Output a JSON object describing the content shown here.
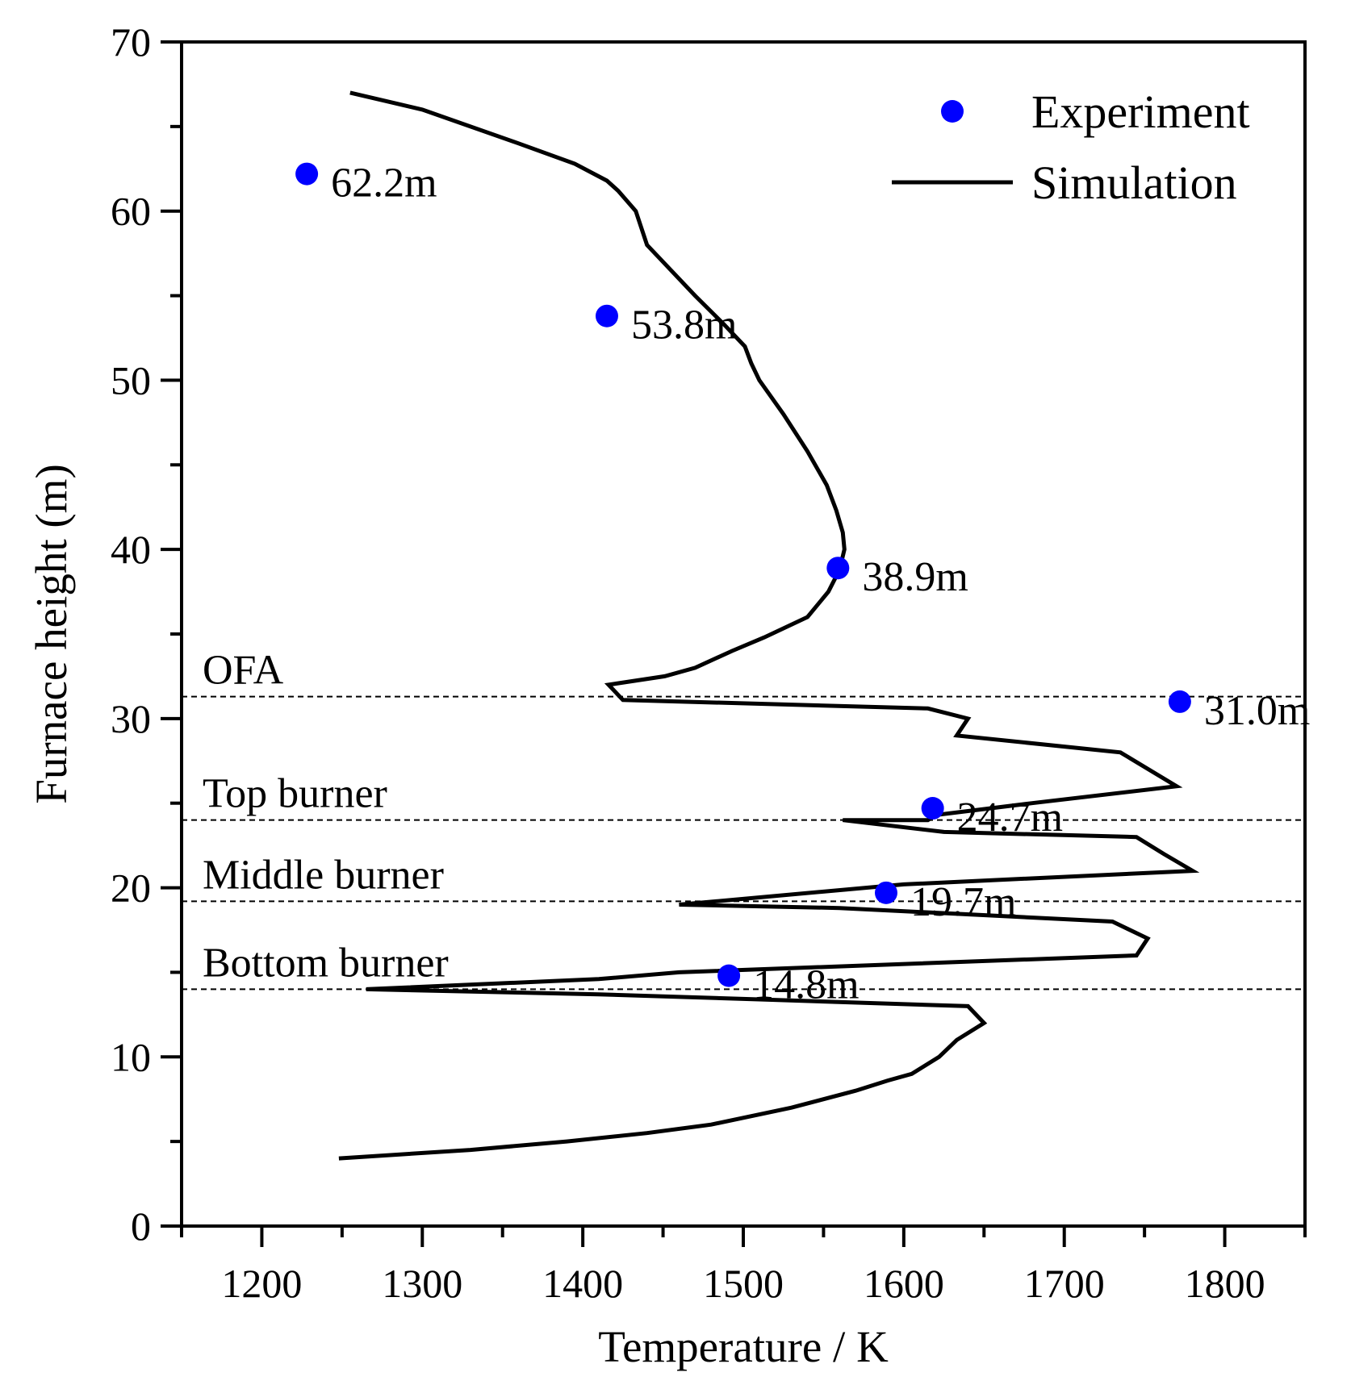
{
  "chart_data": {
    "type": "line+scatter",
    "xlabel": "Temperature / K",
    "ylabel": "Furnace height (m)",
    "xlim": [
      1150,
      1850
    ],
    "ylim": [
      0,
      70
    ],
    "xticks": [
      1200,
      1300,
      1400,
      1500,
      1600,
      1700,
      1800
    ],
    "yticks": [
      0,
      10,
      20,
      30,
      40,
      50,
      60,
      70
    ],
    "grid": false,
    "legend": {
      "position": "top-right",
      "entries": [
        {
          "label": "Experiment",
          "marker": "dot",
          "color": "#0000ff"
        },
        {
          "label": "Simulation",
          "marker": "line",
          "color": "#000000"
        }
      ]
    },
    "series": [
      {
        "name": "Simulation",
        "kind": "line",
        "color": "#000000",
        "points": [
          [
            1255,
            67
          ],
          [
            1300,
            66
          ],
          [
            1360,
            64
          ],
          [
            1395,
            62.8
          ],
          [
            1415,
            61.8
          ],
          [
            1422,
            61.2
          ],
          [
            1433,
            60
          ],
          [
            1440,
            58
          ],
          [
            1452,
            56.8
          ],
          [
            1470,
            55
          ],
          [
            1488,
            53.3
          ],
          [
            1501,
            52
          ],
          [
            1505,
            51
          ],
          [
            1510,
            50
          ],
          [
            1525,
            48
          ],
          [
            1540,
            45.8
          ],
          [
            1552,
            43.8
          ],
          [
            1558,
            42.3
          ],
          [
            1562,
            41
          ],
          [
            1563,
            40
          ],
          [
            1560,
            38.8
          ],
          [
            1553,
            37.5
          ],
          [
            1540,
            36
          ],
          [
            1513,
            34.8
          ],
          [
            1493,
            34
          ],
          [
            1470,
            33
          ],
          [
            1451,
            32.5
          ],
          [
            1416,
            32
          ],
          [
            1425,
            31.1
          ],
          [
            1615,
            30.6
          ],
          [
            1640,
            30
          ],
          [
            1633,
            29
          ],
          [
            1735,
            28
          ],
          [
            1770,
            26
          ],
          [
            1680,
            25
          ],
          [
            1620,
            24.3
          ],
          [
            1615,
            24
          ],
          [
            1562,
            24
          ],
          [
            1625,
            23.3
          ],
          [
            1745,
            23
          ],
          [
            1762,
            22
          ],
          [
            1780,
            21
          ],
          [
            1600,
            20.2
          ],
          [
            1460,
            19
          ],
          [
            1560,
            18.8
          ],
          [
            1730,
            18
          ],
          [
            1752,
            17
          ],
          [
            1745,
            16
          ],
          [
            1460,
            15
          ],
          [
            1410,
            14.6
          ],
          [
            1265,
            14
          ],
          [
            1410,
            13.7
          ],
          [
            1510,
            13.4
          ],
          [
            1640,
            13
          ],
          [
            1650,
            12
          ],
          [
            1633,
            11
          ],
          [
            1622,
            10
          ],
          [
            1605,
            9
          ],
          [
            1590,
            8.6
          ],
          [
            1570,
            8
          ],
          [
            1530,
            7
          ],
          [
            1480,
            6
          ],
          [
            1440,
            5.5
          ],
          [
            1390,
            5
          ],
          [
            1330,
            4.5
          ],
          [
            1248,
            4
          ]
        ]
      },
      {
        "name": "Experiment",
        "kind": "scatter",
        "color": "#0000ff",
        "points": [
          {
            "x": 1228,
            "y": 62.2,
            "label": "62.2m"
          },
          {
            "x": 1415,
            "y": 53.8,
            "label": "53.8m"
          },
          {
            "x": 1559,
            "y": 38.9,
            "label": "38.9m"
          },
          {
            "x": 1772,
            "y": 31.0,
            "label": "31.0m"
          },
          {
            "x": 1618,
            "y": 24.7,
            "label": "24.7m"
          },
          {
            "x": 1589,
            "y": 19.7,
            "label": "19.7m"
          },
          {
            "x": 1491,
            "y": 14.8,
            "label": "14.8m"
          }
        ]
      }
    ],
    "reference_lines": [
      {
        "label": "OFA",
        "y": 31.3
      },
      {
        "label": "Top burner",
        "y": 24
      },
      {
        "label": "Middle burner",
        "y": 19.2
      },
      {
        "label": "Bottom burner",
        "y": 14
      }
    ]
  }
}
